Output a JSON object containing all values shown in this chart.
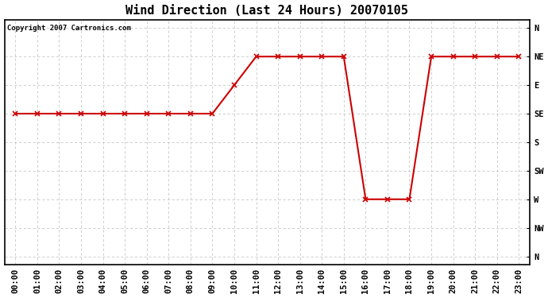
{
  "title": "Wind Direction (Last 24 Hours) 20070105",
  "copyright_text": "Copyright 2007 Cartronics.com",
  "background_color": "#ffffff",
  "plot_bg_color": "#ffffff",
  "line_color": "#cc0000",
  "marker": "x",
  "marker_color": "#cc0000",
  "grid_color": "#c8c8c8",
  "x_labels": [
    "00:00",
    "01:00",
    "02:00",
    "03:00",
    "04:00",
    "05:00",
    "06:00",
    "07:00",
    "08:00",
    "09:00",
    "10:00",
    "11:00",
    "12:00",
    "13:00",
    "14:00",
    "15:00",
    "16:00",
    "17:00",
    "18:00",
    "19:00",
    "20:00",
    "21:00",
    "22:00",
    "23:00"
  ],
  "y_tick_labels": [
    "N",
    "NW",
    "W",
    "SW",
    "S",
    "SE",
    "E",
    "NE",
    "N"
  ],
  "wind_data": {
    "hours": [
      0,
      1,
      2,
      3,
      4,
      5,
      6,
      7,
      8,
      9,
      10,
      11,
      12,
      13,
      14,
      15,
      16,
      17,
      18,
      19,
      20,
      21,
      22,
      23
    ],
    "directions": [
      5,
      5,
      5,
      5,
      5,
      5,
      5,
      5,
      5,
      5,
      6,
      7,
      7,
      7,
      7,
      7,
      2,
      2,
      2,
      7,
      7,
      7,
      7,
      7
    ]
  },
  "title_fontsize": 11,
  "copyright_fontsize": 6.5,
  "tick_fontsize": 7.5,
  "linewidth": 1.5,
  "markersize": 4,
  "markeredgewidth": 1.2
}
